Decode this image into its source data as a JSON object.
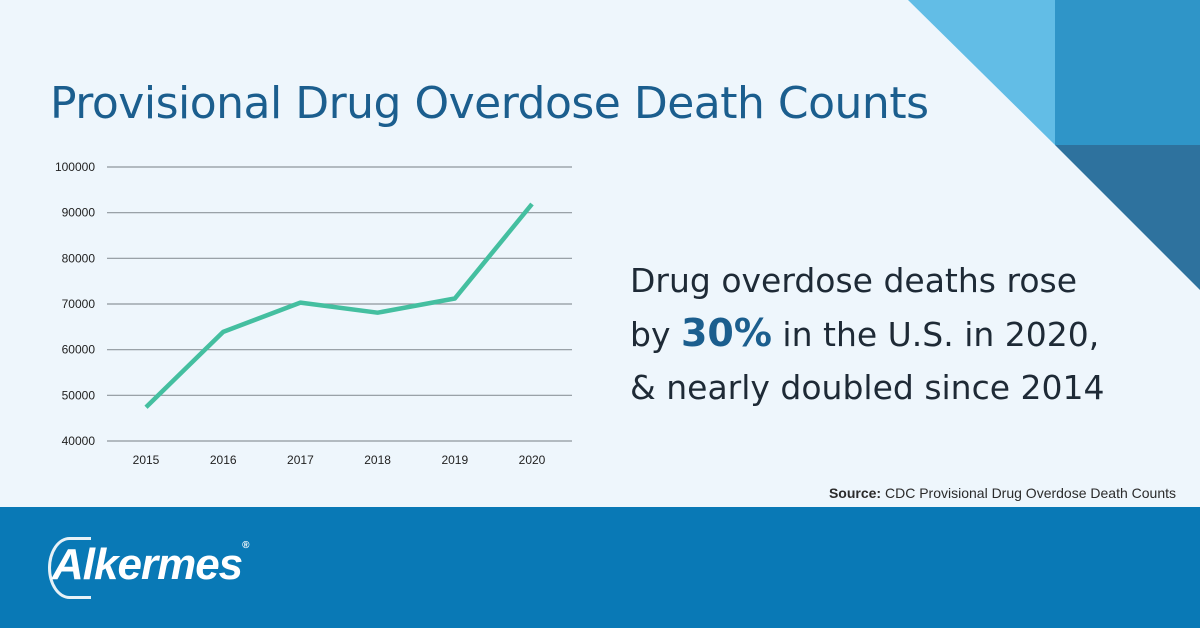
{
  "title": "Provisional Drug Overdose Death Counts",
  "callout": {
    "line1": "Drug overdose deaths rose",
    "line2_pre": "by ",
    "line2_highlight": "30%",
    "line2_post": " in the U.S. in 2020,",
    "line3": "& nearly doubled since 2014"
  },
  "source": {
    "label": "Source:",
    "text": " CDC Provisional Drug Overdose Death Counts"
  },
  "footer": {
    "logo": "Alkermes",
    "registered": "®"
  },
  "colors": {
    "background": "#eef6fc",
    "line": "#44bfa0",
    "title": "#1b5e8e",
    "footer": "#0979b6"
  },
  "chart_data": {
    "type": "line",
    "title": "Provisional Drug Overdose Death Counts",
    "categories": [
      "2015",
      "2016",
      "2017",
      "2018",
      "2019",
      "2020"
    ],
    "series": [
      {
        "name": "Drug overdose deaths",
        "values": [
          47400,
          63900,
          70300,
          68100,
          71200,
          91900
        ]
      }
    ],
    "ylim": [
      40000,
      100000
    ],
    "yticks": [
      "40000",
      "50000",
      "60000",
      "70000",
      "80000",
      "90000",
      "100000"
    ],
    "grid": true,
    "xlabel": "",
    "ylabel": ""
  }
}
